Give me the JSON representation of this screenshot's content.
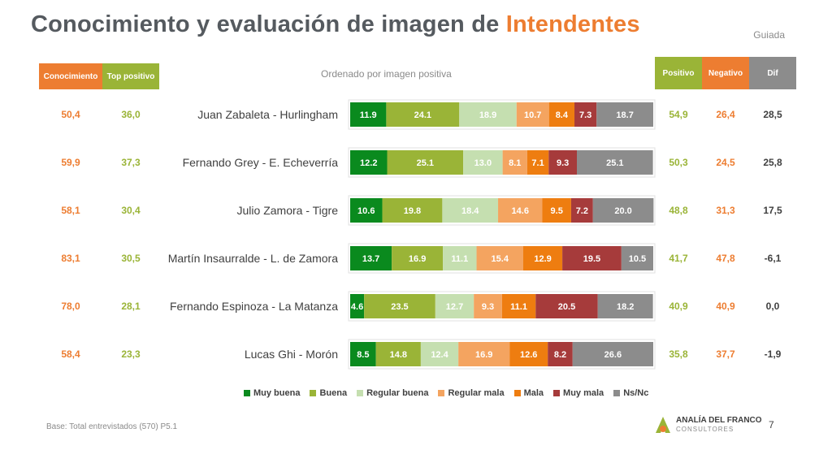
{
  "title_main": "Conocimiento y evaluación de imagen de ",
  "title_highlight": "Intendentes",
  "guiada": "Guiada",
  "subtitle": "Ordenado por imagen positiva",
  "headers": {
    "conocimiento": "Conocimiento",
    "top_positivo": "Top positivo",
    "positivo": "Positivo",
    "negativo": "Negativo",
    "dif": "Dif"
  },
  "colors": {
    "muy_buena": "#0a8a1e",
    "buena": "#9ab437",
    "regular_buena": "#c5dfb0",
    "regular_mala": "#f4a460",
    "mala": "#ee7d10",
    "muy_mala": "#a63b3b",
    "nsnc": "#8c8c8c",
    "header_orange": "#ed7d31",
    "header_green": "#9ab437",
    "header_gray": "#8c8c8c"
  },
  "chart_data": {
    "type": "bar",
    "stacked": true,
    "orientation": "horizontal",
    "categories": [
      "Juan Zabaleta - Hurlingham",
      "Fernando Grey - E. Echeverría",
      "Julio Zamora - Tigre",
      "Martín Insaurralde - L. de Zamora",
      "Fernando Espinoza - La Matanza",
      "Lucas Ghi - Morón"
    ],
    "series": [
      {
        "name": "Muy buena",
        "values": [
          11.9,
          12.2,
          10.6,
          13.7,
          4.6,
          8.5
        ]
      },
      {
        "name": "Buena",
        "values": [
          24.1,
          25.1,
          19.8,
          16.9,
          23.5,
          14.8
        ]
      },
      {
        "name": "Regular buena",
        "values": [
          18.9,
          13.0,
          18.4,
          11.1,
          12.7,
          12.4
        ]
      },
      {
        "name": "Regular mala",
        "values": [
          10.7,
          8.1,
          14.6,
          15.4,
          9.3,
          16.9
        ]
      },
      {
        "name": "Mala",
        "values": [
          8.4,
          7.1,
          9.5,
          12.9,
          11.1,
          12.6
        ]
      },
      {
        "name": "Muy mala",
        "values": [
          7.3,
          9.3,
          7.2,
          19.5,
          20.5,
          8.2
        ]
      },
      {
        "name": "Ns/Nc",
        "values": [
          18.7,
          25.1,
          20.0,
          10.5,
          18.2,
          26.6
        ]
      }
    ],
    "legend_position": "bottom",
    "xlim": [
      0,
      100
    ]
  },
  "table": {
    "conocimiento": [
      "50,4",
      "59,9",
      "58,1",
      "83,1",
      "78,0",
      "58,4"
    ],
    "top_positivo": [
      "36,0",
      "37,3",
      "30,4",
      "30,5",
      "28,1",
      "23,3"
    ],
    "positivo": [
      "54,9",
      "50,3",
      "48,8",
      "41,7",
      "40,9",
      "35,8"
    ],
    "negativo": [
      "26,4",
      "24,5",
      "31,3",
      "47,8",
      "40,9",
      "37,7"
    ],
    "dif": [
      "28,5",
      "25,8",
      "17,5",
      "-6,1",
      "0,0",
      "-1,9"
    ]
  },
  "base_note": "Base: Total entrevistados (570) P5.1",
  "logo": {
    "line1": "ANALÍA DEL FRANCO",
    "line2": "CONSULTORES"
  },
  "page_number": "7"
}
